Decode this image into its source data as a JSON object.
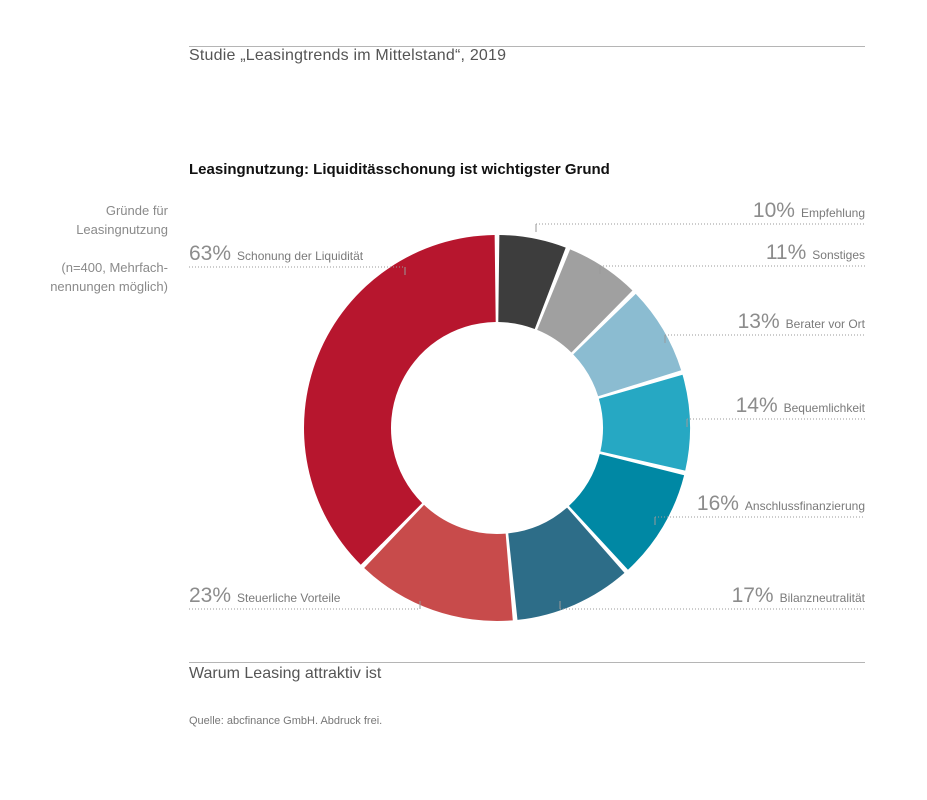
{
  "header": {
    "study_title": "Studie „Leasingtrends im Mittelstand“, 2019"
  },
  "sidebar_note": {
    "line1": "Gründe für",
    "line2": "Leasingnutzung",
    "line3": "(n=400, Mehrfach-",
    "line4": "nennungen möglich)"
  },
  "footer": {
    "title": "Warum Leasing attraktiv ist",
    "source": "Quelle: abcfinance GmbH. Abdruck frei."
  },
  "chart_data": {
    "type": "pie",
    "title": "Leasingnutzung: Liquiditässchonung ist wichtigster Grund",
    "order": "clockwise-from-top",
    "categories": [
      "Empfehlung",
      "Sonstiges",
      "Berater vor Ort",
      "Bequemlichkeit",
      "Anschlussfinanzierung",
      "Bilanzneutralität",
      "Steuerliche Vorteile",
      "Schonung der Liquidität"
    ],
    "values": [
      10,
      11,
      13,
      14,
      16,
      17,
      23,
      63
    ],
    "value_labels": [
      "10%",
      "11%",
      "13%",
      "14%",
      "16%",
      "17%",
      "23%",
      "63%"
    ],
    "colors": [
      "#3d3d3d",
      "#a0a0a0",
      "#8bbcd1",
      "#26a8c3",
      "#0088a4",
      "#2d6d88",
      "#c84b4b",
      "#b7162e"
    ],
    "hole": true
  }
}
